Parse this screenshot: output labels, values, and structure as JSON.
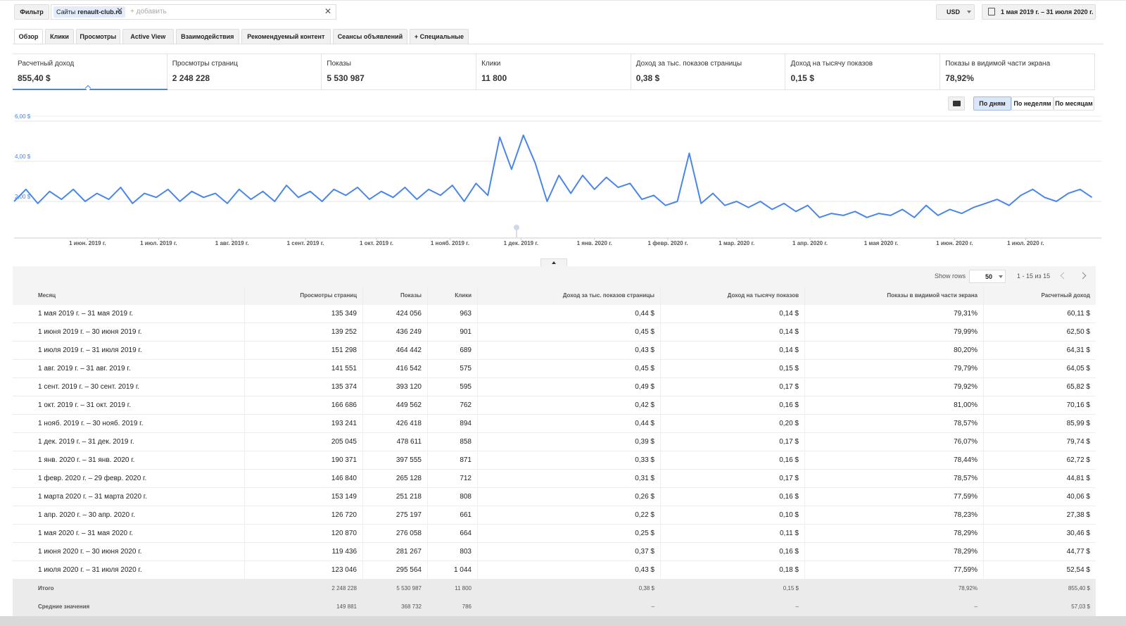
{
  "filter": {
    "button": "Фильтр",
    "chip_label": "Сайты",
    "chip_value": "renault-club.ru",
    "placeholder": "+ добавить"
  },
  "currency": "USD",
  "date_range": "1 мая 2019 г. – 31 июля 2020 г.",
  "tabs": [
    "Обзор",
    "Клики",
    "Просмотры",
    "Active View",
    "Взаимодействия",
    "Рекомендуемый контент",
    "Сеансы объявлений",
    "+ Специальные"
  ],
  "metrics": [
    {
      "label": "Расчетный доход",
      "value": "855,40 $"
    },
    {
      "label": "Просмотры страниц",
      "value": "2 248 228"
    },
    {
      "label": "Показы",
      "value": "5 530 987"
    },
    {
      "label": "Клики",
      "value": "11 800"
    },
    {
      "label": "Доход за тыс. показов страницы",
      "value": "0,38 $"
    },
    {
      "label": "Доход на тысячу показов",
      "value": "0,15 $"
    },
    {
      "label": "Показы в видимой части экрана",
      "value": "78,92%"
    }
  ],
  "granularity": [
    "По дням",
    "По неделям",
    "По месяцам"
  ],
  "chart_data": {
    "type": "line",
    "grid": true,
    "ylim": [
      0,
      6
    ],
    "yticks": [
      {
        "value": 2,
        "label": "2,00 $"
      },
      {
        "value": 4,
        "label": "4,00 $"
      },
      {
        "value": 6,
        "label": "6,00 $"
      }
    ],
    "xlim": [
      0,
      456
    ],
    "xticks": [
      {
        "value": 31,
        "label": "1 июн. 2019 г."
      },
      {
        "value": 61,
        "label": "1 июл. 2019 г."
      },
      {
        "value": 92,
        "label": "1 авг. 2019 г."
      },
      {
        "value": 123,
        "label": "1 сент. 2019 г."
      },
      {
        "value": 153,
        "label": "1 окт. 2019 г."
      },
      {
        "value": 184,
        "label": "1 нояб. 2019 г."
      },
      {
        "value": 214,
        "label": "1 дек. 2019 г."
      },
      {
        "value": 245,
        "label": "1 янв. 2020 г."
      },
      {
        "value": 276,
        "label": "1 февр. 2020 г."
      },
      {
        "value": 305,
        "label": "1 мар. 2020 г."
      },
      {
        "value": 336,
        "label": "1 апр. 2020 г."
      },
      {
        "value": 366,
        "label": "1 мая 2020 г."
      },
      {
        "value": 397,
        "label": "1 июн. 2020 г."
      },
      {
        "value": 427,
        "label": "1 июл. 2020 г."
      }
    ],
    "x": [
      0,
      5,
      10,
      15,
      20,
      25,
      30,
      35,
      40,
      45,
      50,
      55,
      60,
      65,
      70,
      75,
      80,
      85,
      90,
      95,
      100,
      105,
      110,
      115,
      120,
      125,
      130,
      135,
      140,
      145,
      150,
      155,
      160,
      165,
      170,
      175,
      180,
      185,
      190,
      195,
      200,
      205,
      210,
      215,
      220,
      225,
      230,
      235,
      240,
      245,
      250,
      255,
      260,
      265,
      270,
      275,
      280,
      285,
      290,
      295,
      300,
      305,
      310,
      315,
      320,
      325,
      330,
      335,
      340,
      345,
      350,
      355,
      360,
      365,
      370,
      375,
      380,
      385,
      390,
      395,
      400,
      405,
      410,
      415,
      420,
      425,
      430,
      435,
      440,
      445,
      450,
      455
    ],
    "series": [
      {
        "color": "#4a86e8",
        "values": [
          2.0,
          2.6,
          1.9,
          2.5,
          2.1,
          2.6,
          2.0,
          2.4,
          2.1,
          2.7,
          1.9,
          2.4,
          2.2,
          2.6,
          2.0,
          2.5,
          2.2,
          2.4,
          1.9,
          2.6,
          2.1,
          2.5,
          2.0,
          2.8,
          2.2,
          2.5,
          2.0,
          2.6,
          2.3,
          2.7,
          2.1,
          2.5,
          2.2,
          2.7,
          2.1,
          2.6,
          2.3,
          2.8,
          2.0,
          2.9,
          2.3,
          5.2,
          3.6,
          5.3,
          3.9,
          2.0,
          3.3,
          2.4,
          3.3,
          2.6,
          3.2,
          2.7,
          2.9,
          2.1,
          2.3,
          1.8,
          2.0,
          4.4,
          1.9,
          2.4,
          1.8,
          2.0,
          1.7,
          2.0,
          1.6,
          1.9,
          1.5,
          1.8,
          1.2,
          1.4,
          1.3,
          1.5,
          1.2,
          1.4,
          1.3,
          1.6,
          1.2,
          1.8,
          1.3,
          1.6,
          1.4,
          1.7,
          1.9,
          2.1,
          1.8,
          2.3,
          2.6,
          2.2,
          2.0,
          2.4,
          2.6,
          2.2
        ]
      }
    ]
  },
  "table": {
    "show_rows_label": "Show rows",
    "show_rows": "50",
    "pagination": "1 - 15 из 15",
    "headers": [
      "Месяц",
      "Просмотры страниц",
      "Показы",
      "Клики",
      "Доход за тыс. показов страницы",
      "Доход на тысячу показов",
      "Показы в видимой части экрана",
      "Расчетный доход"
    ],
    "rows": [
      [
        "1 мая 2019 г. – 31 мая 2019 г.",
        "135 349",
        "424 056",
        "963",
        "0,44 $",
        "0,14 $",
        "79,31%",
        "60,11 $"
      ],
      [
        "1 июня 2019 г. – 30 июня 2019 г.",
        "139 252",
        "436 249",
        "901",
        "0,45 $",
        "0,14 $",
        "79,99%",
        "62,50 $"
      ],
      [
        "1 июля 2019 г. – 31 июля 2019 г.",
        "151 298",
        "464 442",
        "689",
        "0,43 $",
        "0,14 $",
        "80,20%",
        "64,31 $"
      ],
      [
        "1 авг. 2019 г. – 31 авг. 2019 г.",
        "141 551",
        "416 542",
        "575",
        "0,45 $",
        "0,15 $",
        "79,79%",
        "64,05 $"
      ],
      [
        "1 сент. 2019 г. – 30 сент. 2019 г.",
        "135 374",
        "393 120",
        "595",
        "0,49 $",
        "0,17 $",
        "79,92%",
        "65,82 $"
      ],
      [
        "1 окт. 2019 г. – 31 окт. 2019 г.",
        "166 686",
        "449 562",
        "762",
        "0,42 $",
        "0,16 $",
        "81,00%",
        "70,16 $"
      ],
      [
        "1 нояб. 2019 г. – 30 нояб. 2019 г.",
        "193 241",
        "426 418",
        "894",
        "0,44 $",
        "0,20 $",
        "78,57%",
        "85,99 $"
      ],
      [
        "1 дек. 2019 г. – 31 дек. 2019 г.",
        "205 045",
        "478 611",
        "858",
        "0,39 $",
        "0,17 $",
        "76,07%",
        "79,74 $"
      ],
      [
        "1 янв. 2020 г. – 31 янв. 2020 г.",
        "190 371",
        "397 555",
        "871",
        "0,33 $",
        "0,16 $",
        "78,44%",
        "62,72 $"
      ],
      [
        "1 февр. 2020 г. – 29 февр. 2020 г.",
        "146 840",
        "265 128",
        "712",
        "0,31 $",
        "0,17 $",
        "78,57%",
        "44,81 $"
      ],
      [
        "1 марта 2020 г. – 31 марта 2020 г.",
        "153 149",
        "251 218",
        "808",
        "0,26 $",
        "0,16 $",
        "77,59%",
        "40,06 $"
      ],
      [
        "1 апр. 2020 г. – 30 апр. 2020 г.",
        "126 720",
        "275 197",
        "661",
        "0,22 $",
        "0,10 $",
        "78,23%",
        "27,38 $"
      ],
      [
        "1 мая 2020 г. – 31 мая 2020 г.",
        "120 870",
        "276 058",
        "664",
        "0,25 $",
        "0,11 $",
        "78,29%",
        "30,46 $"
      ],
      [
        "1 июня 2020 г. – 30 июня 2020 г.",
        "119 436",
        "281 267",
        "803",
        "0,37 $",
        "0,16 $",
        "78,29%",
        "44,77 $"
      ],
      [
        "1 июля 2020 г. – 31 июля 2020 г.",
        "123 046",
        "295 564",
        "1 044",
        "0,43 $",
        "0,18 $",
        "77,59%",
        "52,54 $"
      ]
    ],
    "total": [
      "Итого",
      "2 248 228",
      "5 530 987",
      "11 800",
      "0,38 $",
      "0,15 $",
      "78,92%",
      "855,40 $"
    ],
    "average": [
      "Средние значения",
      "149 881",
      "368 732",
      "786",
      "–",
      "–",
      "–",
      "57,03 $"
    ]
  }
}
